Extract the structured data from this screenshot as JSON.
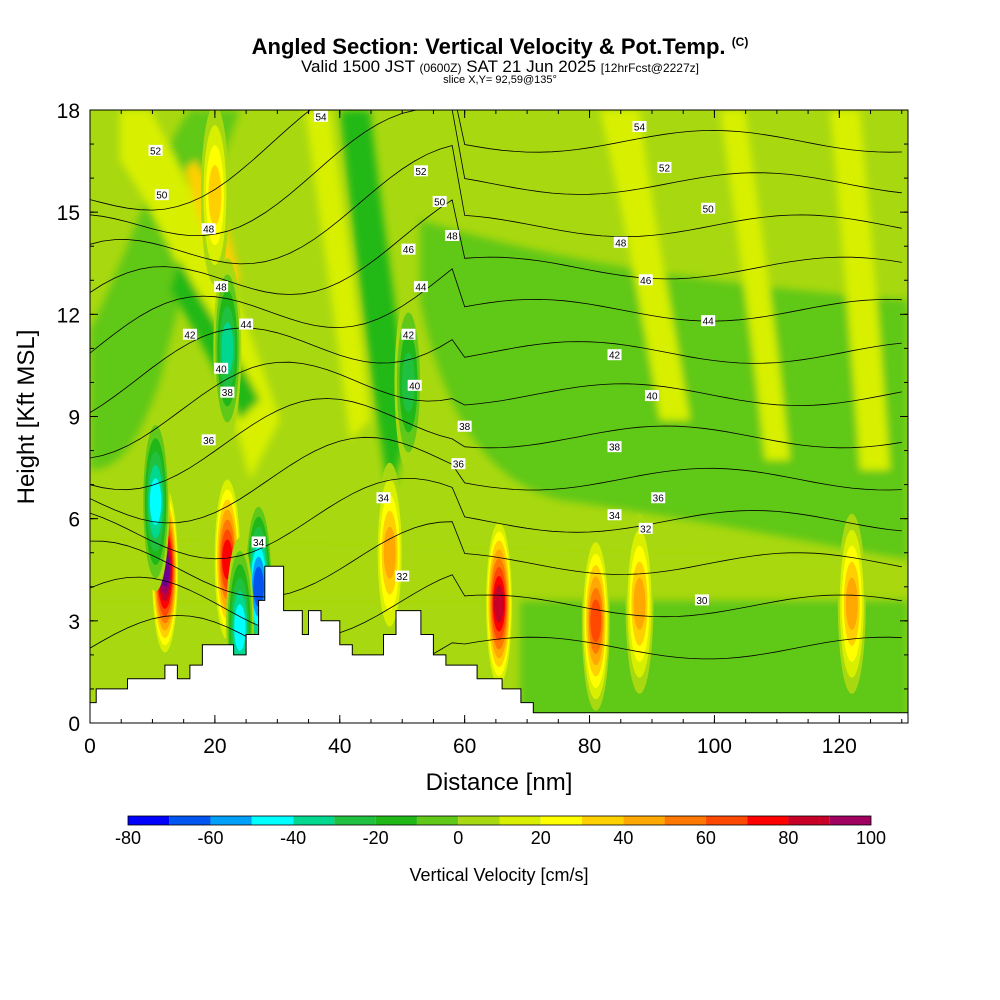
{
  "title": {
    "main": "Angled Section: Vertical Velocity & Pot.Temp.",
    "main_units": "(C)",
    "valid_prefix": "Valid 1500 JST",
    "valid_utc": "(0600Z)",
    "valid_date": "SAT 21 Jun 2025",
    "forecast": "[12hrFcst@2227z]",
    "slice": "slice X,Y= 92,59@135°"
  },
  "chart_data": {
    "type": "heatmap",
    "xlabel": "Distance [nm]",
    "ylabel": "Height [Kft MSL]",
    "xlim": [
      0,
      131
    ],
    "ylim": [
      0,
      18
    ],
    "x_ticks": [
      0,
      20,
      40,
      60,
      80,
      100,
      120
    ],
    "x_tick_labels": [
      "0",
      "20",
      "40",
      "60",
      "80",
      "100",
      "120"
    ],
    "y_ticks": [
      0,
      3,
      6,
      9,
      12,
      15,
      18
    ],
    "y_tick_labels": [
      "0",
      "3",
      "6",
      "9",
      "12",
      "15",
      "18"
    ],
    "colorbar": {
      "title": "Vertical Velocity [cm/s]",
      "levels": [
        -80,
        -70,
        -60,
        -50,
        -40,
        -30,
        -20,
        -10,
        0,
        10,
        20,
        30,
        40,
        50,
        60,
        70,
        80,
        90,
        100
      ],
      "labels": [
        "-80",
        "-60",
        "-40",
        "-20",
        "0",
        "20",
        "40",
        "60",
        "80",
        "100"
      ],
      "label_values": [
        -80,
        -60,
        -40,
        -20,
        0,
        20,
        40,
        60,
        80,
        100
      ],
      "colors": [
        "#0000ff",
        "#0055f0",
        "#00a0f8",
        "#00ffff",
        "#00d890",
        "#20c040",
        "#20b818",
        "#60c818",
        "#a8d810",
        "#d8f000",
        "#ffff00",
        "#ffd000",
        "#ffa800",
        "#ff7800",
        "#ff4800",
        "#ff0000",
        "#c80028",
        "#a00060",
        "#6c008c"
      ]
    },
    "velocity_cells": [
      {
        "x": 12,
        "y": 4.5,
        "value": 95
      },
      {
        "x": 22,
        "y": 4.8,
        "value": 70
      },
      {
        "x": 10.5,
        "y": 6.5,
        "value": -45
      },
      {
        "x": 27,
        "y": 4,
        "value": -65
      },
      {
        "x": 24,
        "y": 2.8,
        "value": -50
      },
      {
        "x": 65.5,
        "y": 3.5,
        "value": 80
      },
      {
        "x": 81,
        "y": 3,
        "value": 60
      },
      {
        "x": 88,
        "y": 3.5,
        "value": 40
      },
      {
        "x": 122,
        "y": 3.5,
        "value": 40
      },
      {
        "x": 48,
        "y": 5,
        "value": 40
      },
      {
        "x": 20,
        "y": 15.5,
        "value": 30
      },
      {
        "x": 51,
        "y": 10,
        "value": -25
      },
      {
        "x": 22,
        "y": 11,
        "value": -40
      }
    ],
    "terrain": [
      {
        "x": 0,
        "y": 0.6
      },
      {
        "x": 1,
        "y": 1.0
      },
      {
        "x": 6,
        "y": 1.3
      },
      {
        "x": 9,
        "y": 1.3
      },
      {
        "x": 12,
        "y": 1.7
      },
      {
        "x": 14,
        "y": 1.3
      },
      {
        "x": 16,
        "y": 1.7
      },
      {
        "x": 18,
        "y": 2.3
      },
      {
        "x": 22,
        "y": 2.3
      },
      {
        "x": 23,
        "y": 2.0
      },
      {
        "x": 25,
        "y": 2.6
      },
      {
        "x": 27,
        "y": 3.6
      },
      {
        "x": 28,
        "y": 4.6
      },
      {
        "x": 30,
        "y": 4.6
      },
      {
        "x": 31,
        "y": 3.3
      },
      {
        "x": 34,
        "y": 2.6
      },
      {
        "x": 35,
        "y": 3.3
      },
      {
        "x": 37,
        "y": 3.0
      },
      {
        "x": 40,
        "y": 2.3
      },
      {
        "x": 42,
        "y": 2.0
      },
      {
        "x": 45,
        "y": 2.0
      },
      {
        "x": 47,
        "y": 2.6
      },
      {
        "x": 49,
        "y": 3.3
      },
      {
        "x": 53,
        "y": 2.6
      },
      {
        "x": 55,
        "y": 2.0
      },
      {
        "x": 57,
        "y": 1.7
      },
      {
        "x": 60,
        "y": 1.7
      },
      {
        "x": 62,
        "y": 1.3
      },
      {
        "x": 66,
        "y": 1.0
      },
      {
        "x": 69,
        "y": 0.6
      },
      {
        "x": 71,
        "y": 0.3
      },
      {
        "x": 131,
        "y": 0.3
      }
    ],
    "isentropes": [
      30,
      32,
      34,
      36,
      38,
      40,
      42,
      44,
      46,
      48,
      50,
      52,
      54
    ],
    "contour_labels": [
      {
        "text": "54",
        "x": 37,
        "y": 17.8
      },
      {
        "text": "54",
        "x": 88,
        "y": 17.5
      },
      {
        "text": "52",
        "x": 10.5,
        "y": 16.8
      },
      {
        "text": "52",
        "x": 53,
        "y": 16.2
      },
      {
        "text": "52",
        "x": 92,
        "y": 16.3
      },
      {
        "text": "50",
        "x": 11.5,
        "y": 15.5
      },
      {
        "text": "50",
        "x": 56,
        "y": 15.3
      },
      {
        "text": "50",
        "x": 99,
        "y": 15.1
      },
      {
        "text": "48",
        "x": 19,
        "y": 14.5
      },
      {
        "text": "48",
        "x": 58,
        "y": 14.3
      },
      {
        "text": "48",
        "x": 85,
        "y": 14.1
      },
      {
        "text": "48",
        "x": 21,
        "y": 12.8
      },
      {
        "text": "46",
        "x": 51,
        "y": 13.9
      },
      {
        "text": "46",
        "x": 89,
        "y": 13.0
      },
      {
        "text": "44",
        "x": 53,
        "y": 12.8
      },
      {
        "text": "44",
        "x": 25,
        "y": 11.7
      },
      {
        "text": "44",
        "x": 99,
        "y": 11.8
      },
      {
        "text": "42",
        "x": 16,
        "y": 11.4
      },
      {
        "text": "42",
        "x": 51,
        "y": 11.4
      },
      {
        "text": "42",
        "x": 84,
        "y": 10.8
      },
      {
        "text": "40",
        "x": 21,
        "y": 10.4
      },
      {
        "text": "40",
        "x": 52,
        "y": 9.9
      },
      {
        "text": "40",
        "x": 90,
        "y": 9.6
      },
      {
        "text": "38",
        "x": 22,
        "y": 9.7
      },
      {
        "text": "38",
        "x": 60,
        "y": 8.7
      },
      {
        "text": "38",
        "x": 84,
        "y": 8.1
      },
      {
        "text": "36",
        "x": 19,
        "y": 8.3
      },
      {
        "text": "36",
        "x": 59,
        "y": 7.6
      },
      {
        "text": "36",
        "x": 91,
        "y": 6.6
      },
      {
        "text": "34",
        "x": 47,
        "y": 6.6
      },
      {
        "text": "34",
        "x": 84,
        "y": 6.1
      },
      {
        "text": "34",
        "x": 27,
        "y": 5.3
      },
      {
        "text": "32",
        "x": 89,
        "y": 5.7
      },
      {
        "text": "32",
        "x": 50,
        "y": 4.3
      },
      {
        "text": "30",
        "x": 98,
        "y": 3.6
      }
    ]
  }
}
